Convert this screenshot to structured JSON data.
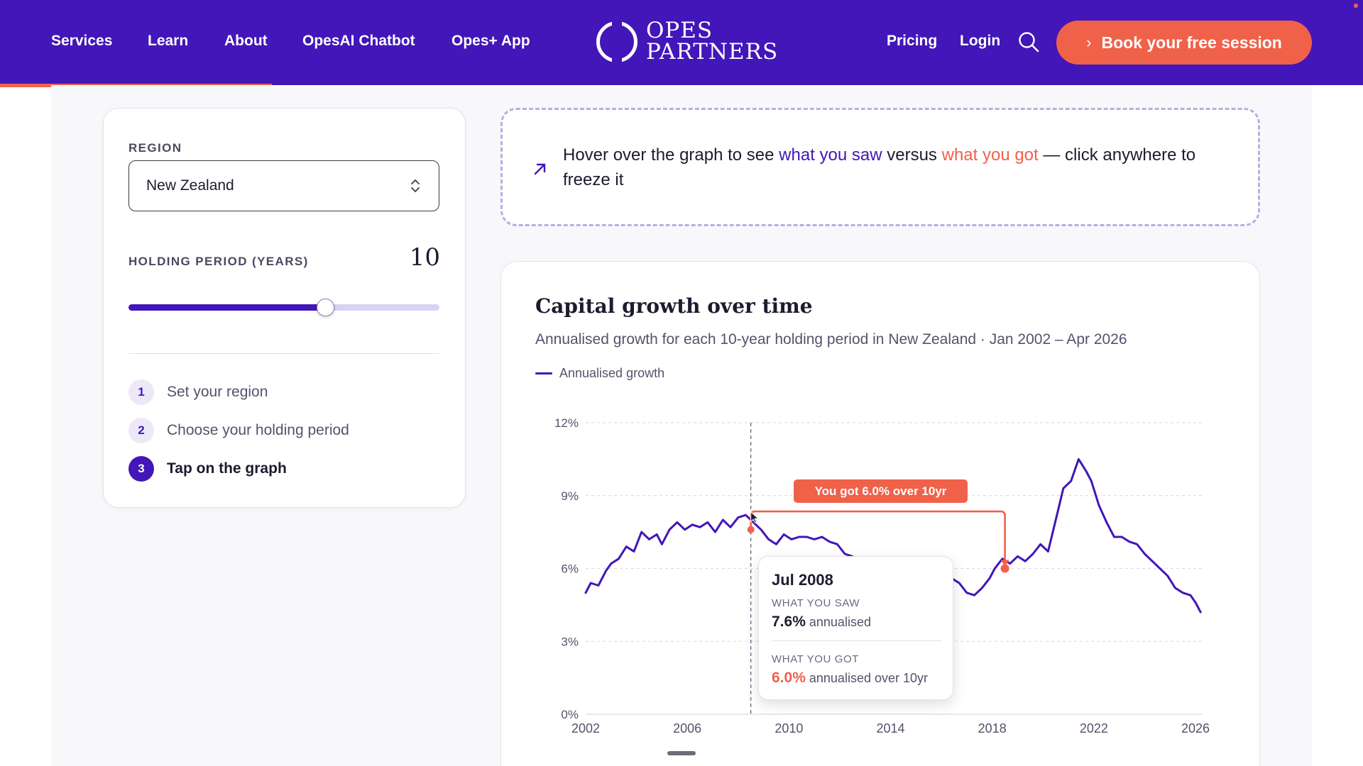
{
  "nav": {
    "links": [
      "Services",
      "Learn",
      "About",
      "OpesAI Chatbot",
      "Opes+ App"
    ],
    "right_links": [
      "Pricing",
      "Login"
    ],
    "logo": [
      "OPES",
      "PARTNERS"
    ],
    "cta_label": "Book your free session",
    "colors": {
      "brand": "#4216b8",
      "accent": "#f0614a"
    }
  },
  "controls": {
    "region_label": "REGION",
    "region_value": "New Zealand",
    "holding_label": "HOLDING PERIOD (YEARS)",
    "holding_value": "10",
    "holding_fraction": 0.633,
    "steps": [
      {
        "num": "1",
        "label": "Set your region"
      },
      {
        "num": "2",
        "label": "Choose your holding period"
      },
      {
        "num": "3",
        "label": "Tap on the graph"
      }
    ]
  },
  "hint": {
    "prefix": "Hover over the graph to see ",
    "saw": "what you saw",
    "middle": " versus ",
    "got": "what you got",
    "suffix": " — click anywhere to freeze it"
  },
  "chart": {
    "title": "Capital growth over time",
    "subtitle": "Annualised growth for each 10-year holding period in New Zealand · Jan 2002 – Apr 2026",
    "legend_label": "Annualised growth"
  },
  "chart_data": {
    "type": "line",
    "title": "Capital growth over time",
    "subtitle": "Annualised growth for each 10-year holding period in New Zealand · Jan 2002 – Apr 2026",
    "xlabel": "",
    "ylabel": "",
    "xlim": [
      2002,
      2026.25
    ],
    "ylim": [
      0,
      12
    ],
    "x_ticks": [
      "2002",
      "2006",
      "2010",
      "2014",
      "2018",
      "2022",
      "2026"
    ],
    "y_ticks": [
      "0%",
      "3%",
      "6%",
      "9%",
      "12%"
    ],
    "grid": true,
    "legend": "top-left",
    "series": [
      {
        "name": "Annualised growth",
        "color": "#4216b8",
        "x": [
          2002.0,
          2002.2,
          2002.5,
          2002.8,
          2003.0,
          2003.3,
          2003.6,
          2003.9,
          2004.2,
          2004.5,
          2004.8,
          2005.0,
          2005.3,
          2005.6,
          2005.9,
          2006.2,
          2006.5,
          2006.8,
          2007.1,
          2007.4,
          2007.7,
          2008.0,
          2008.3,
          2008.6,
          2008.9,
          2009.2,
          2009.5,
          2009.8,
          2010.1,
          2010.4,
          2010.7,
          2011.0,
          2011.3,
          2011.6,
          2011.9,
          2012.2,
          2012.5,
          2012.8,
          2013.1,
          2013.4,
          2013.7,
          2014.0,
          2014.3,
          2014.6,
          2014.9,
          2015.2,
          2015.5,
          2015.8,
          2016.1,
          2016.4,
          2016.7,
          2017.0,
          2017.3,
          2017.6,
          2017.9,
          2018.1,
          2018.4,
          2018.7,
          2019.0,
          2019.3,
          2019.6,
          2019.9,
          2020.2,
          2020.5,
          2020.8,
          2021.1,
          2021.4,
          2021.7,
          2021.9,
          2022.2,
          2022.5,
          2022.8,
          2023.1,
          2023.4,
          2023.7,
          2024.0,
          2024.3,
          2024.6,
          2024.9,
          2025.2,
          2025.5,
          2025.8,
          2026.0,
          2026.2
        ],
        "values": [
          5.0,
          5.4,
          5.3,
          5.9,
          6.2,
          6.4,
          6.9,
          6.7,
          7.5,
          7.2,
          7.4,
          7.0,
          7.6,
          7.9,
          7.6,
          7.8,
          7.7,
          7.9,
          7.5,
          8.0,
          7.7,
          8.1,
          8.2,
          7.9,
          7.6,
          7.2,
          7.0,
          7.4,
          7.2,
          7.3,
          7.3,
          7.2,
          7.3,
          7.1,
          7.0,
          6.6,
          6.5,
          6.1,
          5.9,
          5.6,
          5.8,
          5.4,
          5.6,
          5.2,
          5.5,
          5.7,
          5.4,
          5.6,
          5.8,
          5.6,
          5.4,
          5.0,
          4.9,
          5.2,
          5.6,
          6.0,
          6.4,
          6.2,
          6.5,
          6.3,
          6.6,
          7.0,
          6.7,
          8.0,
          9.3,
          9.6,
          10.5,
          10.0,
          9.6,
          8.6,
          7.9,
          7.3,
          7.3,
          7.1,
          7.0,
          6.6,
          6.3,
          6.0,
          5.7,
          5.2,
          5.0,
          4.9,
          4.6,
          4.2
        ]
      }
    ],
    "annotation": {
      "hover_x": 2008.5,
      "saw_value": 7.6,
      "got_x": 2018.5,
      "got_value": 6.0,
      "badge": "You got 6.0% over 10yr"
    }
  },
  "tooltip": {
    "date": "Jul 2008",
    "saw_label": "WHAT YOU SAW",
    "saw_value": "7.6%",
    "saw_suffix": "annualised",
    "got_label": "WHAT YOU GOT",
    "got_value": "6.0%",
    "got_suffix": "annualised over 10yr"
  },
  "icons": {
    "search": "search-icon",
    "chevron": "chevron-right-icon",
    "arrow": "arrow-up-right-icon",
    "select": "chevron-up-down-icon"
  }
}
